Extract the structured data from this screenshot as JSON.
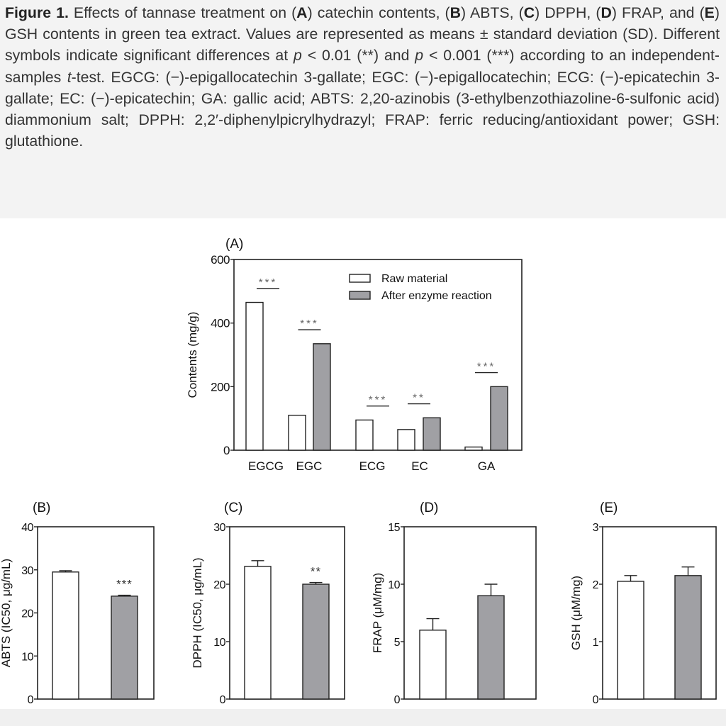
{
  "caption": {
    "segments": [
      {
        "text": "Figure 1.",
        "style": "bold"
      },
      {
        "text": " Effects of tannase treatment on (",
        "style": ""
      },
      {
        "text": "A",
        "style": "bold"
      },
      {
        "text": ") catechin contents, (",
        "style": ""
      },
      {
        "text": "B",
        "style": "bold"
      },
      {
        "text": ") ABTS, (",
        "style": ""
      },
      {
        "text": "C",
        "style": "bold"
      },
      {
        "text": ") DPPH, (",
        "style": ""
      },
      {
        "text": "D",
        "style": "bold"
      },
      {
        "text": ") FRAP, and (",
        "style": ""
      },
      {
        "text": "E",
        "style": "bold"
      },
      {
        "text": ") GSH contents in green tea extract. Values are represented as means ± standard deviation (SD). Different symbols indicate significant differences at ",
        "style": ""
      },
      {
        "text": "p",
        "style": "italic"
      },
      {
        "text": " < 0.01 (**) and ",
        "style": ""
      },
      {
        "text": "p",
        "style": "italic"
      },
      {
        "text": " < 0.001 (***) according to an independent-samples ",
        "style": ""
      },
      {
        "text": "t",
        "style": "italic"
      },
      {
        "text": "-test. EGCG: (−)-epigallocatechin 3-gallate; EGC: (−)-epigallocatechin; ECG: (−)-epicatechin 3-gallate; EC: (−)-epicatechin; GA: gallic acid; ABTS: 2,20-azinobis (3-ethylbenzothiazoline-6-sulfonic acid) diammonium salt; DPPH: 2,2′-diphenylpicrylhydrazyl; FRAP: ferric reducing/antioxidant power; GSH: glutathione.",
        "style": ""
      }
    ]
  },
  "colors": {
    "raw": "#ffffff",
    "after": "#a0a0a4",
    "axis": "#222222",
    "stars": "#666666"
  },
  "chart_data": [
    {
      "type": "bar",
      "panel": "(A)",
      "ylabel": "Contents (mg/g)",
      "ylim": [
        0,
        600
      ],
      "yticks": [
        0,
        200,
        400,
        600
      ],
      "categories": [
        "EGCG",
        "EGC",
        "ECG",
        "EC",
        "GA"
      ],
      "series": [
        {
          "name": "Raw material",
          "values": [
            465,
            110,
            95,
            65,
            10
          ]
        },
        {
          "name": "After enzyme reaction",
          "values": [
            0,
            335,
            0,
            102,
            200
          ]
        }
      ],
      "significance": [
        "***",
        "***",
        "***",
        "**",
        "***"
      ],
      "legend": "top-right"
    },
    {
      "type": "bar",
      "panel": "(B)",
      "ylabel": "ABTS (IC50, μg/mL)",
      "ylim": [
        0,
        40
      ],
      "yticks": [
        0,
        10,
        20,
        30,
        40
      ],
      "categories": [
        "Raw material",
        "After enzyme reaction"
      ],
      "values": [
        29.5,
        23.9
      ],
      "errors": [
        0.3,
        0.2
      ],
      "significance": "***"
    },
    {
      "type": "bar",
      "panel": "(C)",
      "ylabel": "DPPH (IC50, μg/mL)",
      "ylim": [
        0,
        30
      ],
      "yticks": [
        0,
        10,
        20,
        30
      ],
      "categories": [
        "Raw material",
        "After enzyme reaction"
      ],
      "values": [
        23.1,
        20.0
      ],
      "errors": [
        1.0,
        0.3
      ],
      "significance": "**"
    },
    {
      "type": "bar",
      "panel": "(D)",
      "ylabel": "FRAP (μM/mg)",
      "ylim": [
        0,
        15
      ],
      "yticks": [
        0,
        5,
        10,
        15
      ],
      "categories": [
        "Raw material",
        "After enzyme reaction"
      ],
      "values": [
        6.0,
        9.0
      ],
      "errors": [
        1.0,
        1.0
      ],
      "significance": ""
    },
    {
      "type": "bar",
      "panel": "(E)",
      "ylabel": "GSH (μM/mg)",
      "ylim": [
        0,
        3
      ],
      "yticks": [
        0,
        1,
        2,
        3
      ],
      "categories": [
        "Raw material",
        "After enzyme reaction"
      ],
      "values": [
        2.05,
        2.15
      ],
      "errors": [
        0.1,
        0.15
      ],
      "significance": ""
    }
  ]
}
